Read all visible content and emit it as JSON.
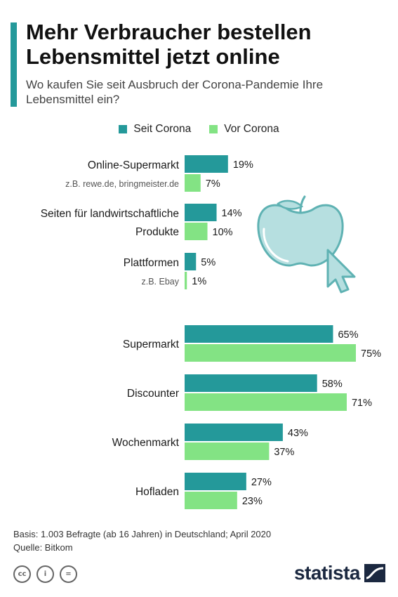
{
  "header": {
    "title": "Mehr Verbraucher bestellen Lebensmittel jetzt online",
    "subtitle": "Wo kaufen Sie seit Ausbruch der Corona-Pandemie Ihre Lebensmittel ein?"
  },
  "legend": {
    "series_1": "Seit Corona",
    "series_2": "Vor Corona"
  },
  "chart_data": {
    "type": "bar",
    "orientation": "horizontal",
    "title": "Mehr Verbraucher bestellen Lebensmittel jetzt online",
    "subtitle": "Wo kaufen Sie seit Ausbruch der Corona-Pandemie Ihre Lebensmittel ein?",
    "unit": "%",
    "xlim": [
      0,
      75
    ],
    "legend_position": "top-center",
    "grid": false,
    "groups": [
      {
        "categories": [
          {
            "label_lines": [
              "Online-Supermarkt"
            ],
            "sublabel": "z.B. rewe.de, bringmeister.de"
          },
          {
            "label_lines": [
              "Seiten für landwirtschaftliche",
              "Produkte"
            ],
            "sublabel": ""
          },
          {
            "label_lines": [
              "Plattformen"
            ],
            "sublabel": "z.B. Ebay"
          }
        ]
      },
      {
        "categories": [
          {
            "label_lines": [
              "Supermarkt"
            ],
            "sublabel": ""
          },
          {
            "label_lines": [
              "Discounter"
            ],
            "sublabel": ""
          },
          {
            "label_lines": [
              "Wochenmarkt"
            ],
            "sublabel": ""
          },
          {
            "label_lines": [
              "Hofladen"
            ],
            "sublabel": ""
          }
        ]
      }
    ],
    "series": [
      {
        "name": "Seit Corona",
        "color": "#24999a",
        "values": [
          19,
          14,
          5,
          65,
          58,
          43,
          27
        ]
      },
      {
        "name": "Vor Corona",
        "color": "#83e384",
        "values": [
          7,
          10,
          1,
          75,
          71,
          37,
          23
        ]
      }
    ]
  },
  "footer": {
    "basis": "Basis: 1.003 Befragte (ab 16 Jahren) in Deutschland; April 2020",
    "source": "Quelle: Bitkom"
  },
  "license_icons": [
    "cc-icon",
    "attribution-icon",
    "no-derivatives-icon"
  ],
  "license_glyphs": {
    "cc": "cc",
    "by": "i",
    "nd": "="
  },
  "brand": {
    "name": "statista"
  },
  "colors": {
    "accent": "#24999a",
    "seit": "#24999a",
    "vor": "#83e384",
    "brand": "#1b2840"
  }
}
